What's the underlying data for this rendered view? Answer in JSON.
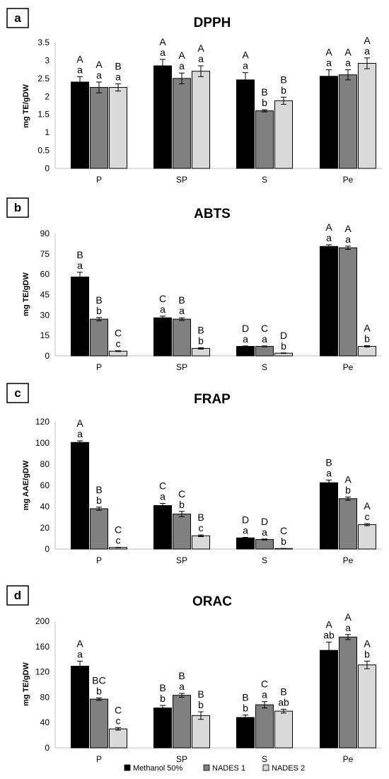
{
  "colors": {
    "Methanol 50%": "#000000",
    "NADES 1": "#808080",
    "NADES 2": "#d9d9d9"
  },
  "legend": {
    "items": [
      "Methanol 50%",
      "NADES 1",
      "NADES 2"
    ],
    "position": "bottom"
  },
  "chart_data": [
    {
      "panel": "a",
      "type": "bar",
      "title": "DPPH",
      "ylabel": "mg TE/gDW",
      "ylim": [
        0,
        3.5
      ],
      "yticks": [
        "0",
        "0.5",
        "1",
        "1.5",
        "2",
        "2.5",
        "3",
        "3.5"
      ],
      "categories": [
        "P",
        "SP",
        "S",
        "Pe"
      ],
      "series": [
        {
          "name": "Methanol 50%",
          "values": [
            2.4,
            2.85,
            2.46,
            2.56
          ],
          "errors": [
            0.15,
            0.18,
            0.2,
            0.18
          ],
          "upper": [
            "A",
            "A",
            "A",
            "A"
          ],
          "lower": [
            "a",
            "a",
            "a",
            "a"
          ]
        },
        {
          "name": "NADES 1",
          "values": [
            2.25,
            2.5,
            1.6,
            2.6
          ],
          "errors": [
            0.15,
            0.15,
            0.03,
            0.14
          ],
          "upper": [
            "A",
            "A",
            "B",
            "A"
          ],
          "lower": [
            "a",
            "a",
            "b",
            "a"
          ]
        },
        {
          "name": "NADES 2",
          "values": [
            2.25,
            2.7,
            1.88,
            2.92
          ],
          "errors": [
            0.1,
            0.15,
            0.1,
            0.15
          ],
          "upper": [
            "B",
            "A",
            "B",
            "A"
          ],
          "lower": [
            "a",
            "a",
            "b",
            "a"
          ]
        }
      ]
    },
    {
      "panel": "b",
      "type": "bar",
      "title": "ABTS",
      "ylabel": "mg TE/gDW",
      "ylim": [
        0,
        90
      ],
      "yticks": [
        "0",
        "15",
        "30",
        "45",
        "60",
        "75",
        "90"
      ],
      "categories": [
        "P",
        "SP",
        "S",
        "Pe"
      ],
      "series": [
        {
          "name": "Methanol 50%",
          "values": [
            58,
            28,
            7,
            80.5
          ],
          "errors": [
            3.5,
            1.2,
            0.3,
            1.2
          ],
          "upper": [
            "B",
            "C",
            "D",
            "A"
          ],
          "lower": [
            "a",
            "a",
            "a",
            "a"
          ]
        },
        {
          "name": "NADES 1",
          "values": [
            27,
            27,
            7,
            79.5
          ],
          "errors": [
            1.2,
            1.0,
            0.3,
            1.2
          ],
          "upper": [
            "B",
            "B",
            "C",
            "A"
          ],
          "lower": [
            "b",
            "a",
            "a",
            "a"
          ]
        },
        {
          "name": "NADES 2",
          "values": [
            3.5,
            5.5,
            2,
            7
          ],
          "errors": [
            0.3,
            0.5,
            0.2,
            0.5
          ],
          "upper": [
            "C",
            "B",
            "D",
            "A"
          ],
          "lower": [
            "c",
            "b",
            "b",
            "b"
          ]
        }
      ]
    },
    {
      "panel": "c",
      "type": "bar",
      "title": "FRAP",
      "ylabel": "mg AAE/gDW",
      "ylim": [
        0,
        120
      ],
      "yticks": [
        "0",
        "20",
        "40",
        "60",
        "80",
        "100",
        "120"
      ],
      "categories": [
        "P",
        "SP",
        "S",
        "Pe"
      ],
      "series": [
        {
          "name": "Methanol 50%",
          "values": [
            100.5,
            41,
            10.5,
            62.5
          ],
          "errors": [
            1.5,
            2.0,
            0.5,
            2.5
          ],
          "upper": [
            "A",
            "C",
            "D",
            "B"
          ],
          "lower": [
            "a",
            "a",
            "a",
            "a"
          ]
        },
        {
          "name": "NADES 1",
          "values": [
            38,
            33,
            9,
            47.5
          ],
          "errors": [
            1.5,
            2.5,
            0.5,
            1.5
          ],
          "upper": [
            "B",
            "C",
            "D",
            "A"
          ],
          "lower": [
            "b",
            "b",
            "a",
            "b"
          ]
        },
        {
          "name": "NADES 2",
          "values": [
            1.5,
            12.5,
            0.5,
            23
          ],
          "errors": [
            0.2,
            0.8,
            0.1,
            1.0
          ],
          "upper": [
            "C",
            "B",
            "C",
            "A"
          ],
          "lower": [
            "c",
            "c",
            "b",
            "c"
          ]
        }
      ]
    },
    {
      "panel": "d",
      "type": "bar",
      "title": "ORAC",
      "ylabel": "mg TE/gDW",
      "ylim": [
        0,
        200
      ],
      "yticks": [
        "0",
        "40",
        "80",
        "120",
        "160",
        "200"
      ],
      "categories": [
        "P",
        "SP",
        "S",
        "Pe"
      ],
      "series": [
        {
          "name": "Methanol 50%",
          "values": [
            129,
            63,
            48,
            154
          ],
          "errors": [
            8,
            4,
            4,
            13
          ],
          "upper": [
            "A",
            "B",
            "B",
            "A"
          ],
          "lower": [
            "a",
            "b",
            "b",
            "ab"
          ]
        },
        {
          "name": "NADES 1",
          "values": [
            77,
            83,
            68,
            175
          ],
          "errors": [
            2,
            3,
            5,
            4
          ],
          "upper": [
            "BC",
            "B",
            "C",
            "A"
          ],
          "lower": [
            "b",
            "a",
            "a",
            "a"
          ]
        },
        {
          "name": "NADES 2",
          "values": [
            30,
            51,
            58,
            131
          ],
          "errors": [
            2,
            6,
            3,
            6
          ],
          "upper": [
            "C",
            "B",
            "B",
            "A"
          ],
          "lower": [
            "c",
            "b",
            "ab",
            "b"
          ]
        }
      ]
    }
  ]
}
